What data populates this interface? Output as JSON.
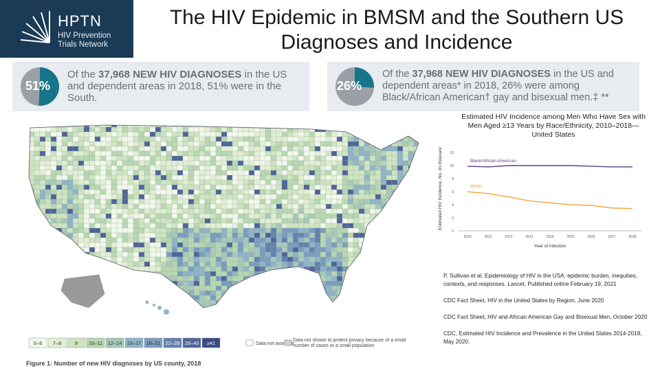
{
  "header": {
    "logo_name": "HPTN",
    "logo_sub1": "HIV Prevention",
    "logo_sub2": "Trials Network",
    "title_line1": "The HIV Epidemic in BMSM and the Southern US",
    "title_line2": "Diagnoses and Incidence",
    "bg_color": "#1a3a56"
  },
  "stats": [
    {
      "pct": "51%",
      "fraction": 0.51,
      "pre": "Of the ",
      "bold": "37,968 NEW HIV DIAGNOSES",
      "post": " in the US and dependent areas in 2018, 51% were in the South."
    },
    {
      "pct": "26%",
      "fraction": 0.26,
      "pre": "Of the ",
      "bold": "37,968 NEW HIV DIAGNOSES",
      "post": " in the US and dependent areas* in 2018, 26% were among Black/African American† gay and bisexual men.‡ **"
    }
  ],
  "map": {
    "legend": [
      "0–6",
      "7–8",
      "9",
      "10–11",
      "12–14",
      "15–17",
      "18–21",
      "22–28",
      "29–40",
      "≥41"
    ],
    "legend_na": "Data not available",
    "legend_privacy": "Data not shown to protect privacy because of a small number of cases or a small population",
    "caption": "Figure 1: Number of new HIV diagnoses by US county, 2018",
    "colors": [
      "#f3f8ec",
      "#e2efd4",
      "#cfe4c0",
      "#b8d7b0",
      "#a6c9b8",
      "#8fb4c6",
      "#7a9dbd",
      "#6480ad",
      "#4f6498",
      "#3c4a82"
    ]
  },
  "chart_data": {
    "type": "line",
    "title": "Estimated HIV Incidence among Men Who Have Sex with Men Aged ≥13 Years by Race/Ethnicity, 2010–2018—United States",
    "xlabel": "Year of infection",
    "ylabel": "Estimated HIV Incidence, No. (in thousands)",
    "x": [
      "2010",
      "2011",
      "2012",
      "2013",
      "2014",
      "2015",
      "2016",
      "2017",
      "2018"
    ],
    "ylim": [
      0,
      12
    ],
    "yticks": [
      "0",
      "2",
      "4",
      "6",
      "8",
      "10",
      "12"
    ],
    "series": [
      {
        "name": "Black/African American",
        "values": [
          9.9,
          9.8,
          10.0,
          10.0,
          10.0,
          10.0,
          9.9,
          9.8,
          9.8
        ],
        "color": "#5b3f87"
      },
      {
        "name": "White",
        "values": [
          6.0,
          5.7,
          5.2,
          4.6,
          4.3,
          4.0,
          3.9,
          3.5,
          3.4
        ],
        "color": "#f0a830"
      }
    ]
  },
  "references": [
    "P. Sullivan et al. Epidemiology of HIV in the USA: epidemic burden, inequities, contexts, and responses. Lancet. Published online February 19, 2021",
    "CDC Fact Sheet, HIV in the United States by Region, June 2020",
    "CDC Fact Sheet, HIV and African American Gay and Bisexual Men, October 2020",
    "CDC, Estimated HIV Incidence and Prevalence in the United States 2014-2018, May 2020."
  ]
}
